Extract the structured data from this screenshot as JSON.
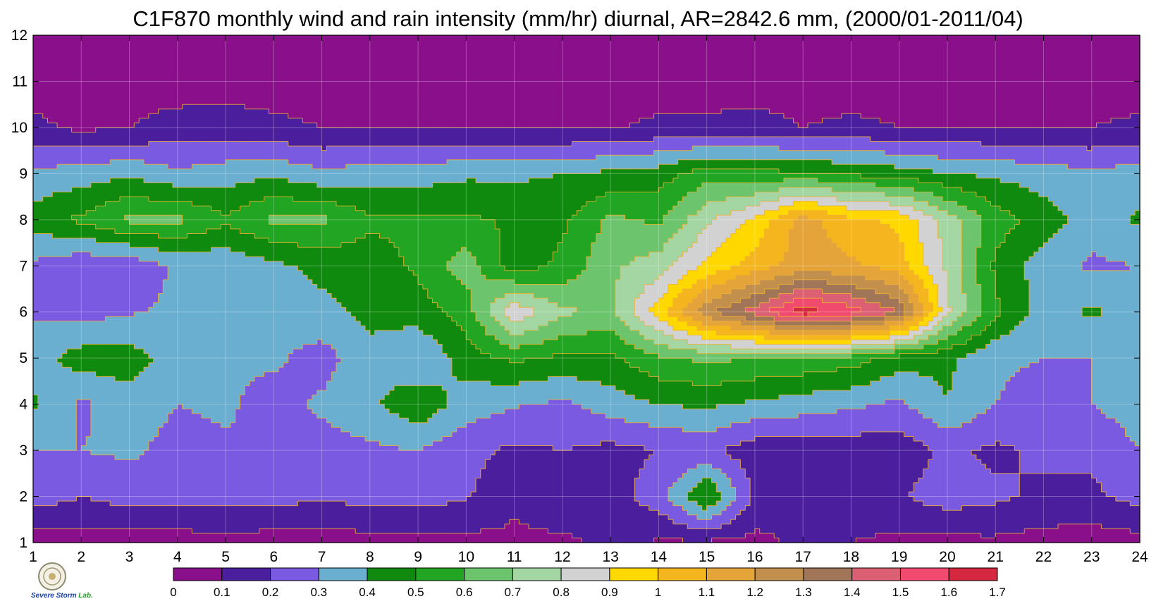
{
  "chart_data": {
    "type": "heatmap",
    "title": "C1F870 monthly wind and rain intensity (mm/hr) diurnal, AR=2842.6 mm, (2000/01-2011/04)",
    "xlabel": "",
    "ylabel": "",
    "xlim": [
      1,
      24
    ],
    "ylim": [
      1,
      12
    ],
    "x_ticks": [
      "1",
      "2",
      "3",
      "4",
      "5",
      "6",
      "7",
      "8",
      "9",
      "10",
      "11",
      "12",
      "13",
      "14",
      "15",
      "16",
      "17",
      "18",
      "19",
      "20",
      "21",
      "22",
      "23",
      "24"
    ],
    "y_ticks": [
      "1",
      "2",
      "3",
      "4",
      "5",
      "6",
      "7",
      "8",
      "9",
      "10",
      "11",
      "12"
    ],
    "grid": true,
    "colorbar": {
      "placement": "bottom",
      "levels": [
        "0",
        "0.1",
        "0.2",
        "0.3",
        "0.4",
        "0.5",
        "0.6",
        "0.7",
        "0.8",
        "0.9",
        "1",
        "1.1",
        "1.2",
        "1.3",
        "1.4",
        "1.5",
        "1.6",
        "1.7"
      ],
      "colors": [
        "#8a0f8a",
        "#4a1e9c",
        "#7a5ae0",
        "#6aaed0",
        "#0f8a0f",
        "#22a522",
        "#6cc46c",
        "#a3d6a3",
        "#d2d2d2",
        "#ffd800",
        "#f5b51f",
        "#e4a43a",
        "#c2904c",
        "#a07558",
        "#dc6074",
        "#f04a6e",
        "#d42840"
      ]
    },
    "contour_line_color": "#f0b030",
    "values": [
      [
        0.05,
        0.06,
        0.05,
        0.05,
        0.06,
        0.05,
        0.05,
        0.06,
        0.07,
        0.07,
        0.08,
        0.08,
        0.12,
        0.09,
        0.08,
        0.07,
        0.12,
        0.1,
        0.08,
        0.07,
        0.08,
        0.06,
        0.05,
        0.06
      ],
      [
        0.25,
        0.2,
        0.24,
        0.24,
        0.24,
        0.24,
        0.21,
        0.24,
        0.24,
        0.21,
        0.12,
        0.18,
        0.16,
        0.25,
        0.52,
        0.18,
        0.14,
        0.12,
        0.19,
        0.25,
        0.22,
        0.18,
        0.18,
        0.24
      ],
      [
        0.3,
        0.3,
        0.32,
        0.26,
        0.28,
        0.3,
        0.25,
        0.28,
        0.3,
        0.23,
        0.18,
        0.2,
        0.17,
        0.2,
        0.22,
        0.14,
        0.14,
        0.14,
        0.14,
        0.22,
        0.18,
        0.22,
        0.22,
        0.3
      ],
      [
        0.42,
        0.28,
        0.36,
        0.3,
        0.32,
        0.25,
        0.32,
        0.38,
        0.48,
        0.35,
        0.31,
        0.28,
        0.35,
        0.4,
        0.42,
        0.38,
        0.35,
        0.32,
        0.28,
        0.4,
        0.3,
        0.25,
        0.3,
        0.35
      ],
      [
        0.35,
        0.45,
        0.45,
        0.35,
        0.32,
        0.32,
        0.25,
        0.38,
        0.3,
        0.45,
        0.52,
        0.48,
        0.48,
        0.58,
        0.62,
        0.6,
        0.58,
        0.55,
        0.45,
        0.42,
        0.32,
        0.3,
        0.3,
        0.32
      ],
      [
        0.29,
        0.26,
        0.29,
        0.32,
        0.32,
        0.35,
        0.38,
        0.42,
        0.45,
        0.55,
        0.88,
        0.72,
        0.68,
        0.95,
        1.28,
        1.45,
        1.66,
        1.55,
        1.4,
        0.82,
        0.52,
        0.35,
        0.42,
        0.35
      ],
      [
        0.28,
        0.22,
        0.22,
        0.32,
        0.32,
        0.38,
        0.42,
        0.45,
        0.52,
        0.65,
        0.45,
        0.52,
        0.68,
        0.75,
        0.92,
        1.05,
        1.15,
        1.12,
        1.05,
        0.78,
        0.48,
        0.35,
        0.28,
        0.3
      ],
      [
        0.45,
        0.52,
        0.62,
        0.62,
        0.52,
        0.62,
        0.62,
        0.52,
        0.52,
        0.52,
        0.48,
        0.48,
        0.62,
        0.58,
        0.78,
        0.92,
        1.15,
        1.02,
        0.98,
        0.75,
        0.55,
        0.45,
        0.35,
        0.42
      ],
      [
        0.32,
        0.35,
        0.38,
        0.32,
        0.35,
        0.38,
        0.32,
        0.35,
        0.35,
        0.38,
        0.38,
        0.4,
        0.42,
        0.45,
        0.55,
        0.52,
        0.52,
        0.48,
        0.45,
        0.4,
        0.38,
        0.35,
        0.32,
        0.35
      ],
      [
        0.12,
        0.08,
        0.1,
        0.14,
        0.15,
        0.12,
        0.1,
        0.1,
        0.1,
        0.09,
        0.09,
        0.09,
        0.09,
        0.12,
        0.12,
        0.14,
        0.1,
        0.12,
        0.1,
        0.1,
        0.1,
        0.1,
        0.1,
        0.12
      ],
      [
        0.06,
        0.07,
        0.06,
        0.05,
        0.05,
        0.06,
        0.05,
        0.05,
        0.05,
        0.05,
        0.05,
        0.05,
        0.05,
        0.05,
        0.05,
        0.05,
        0.05,
        0.05,
        0.05,
        0.05,
        0.05,
        0.05,
        0.05,
        0.05
      ],
      [
        0.05,
        0.05,
        0.05,
        0.05,
        0.05,
        0.05,
        0.1,
        0.05,
        0.05,
        0.05,
        0.05,
        0.05,
        0.05,
        0.05,
        0.05,
        0.05,
        0.05,
        0.05,
        0.05,
        0.05,
        0.05,
        0.05,
        0.05,
        0.05
      ]
    ]
  },
  "logo": {
    "line1": "Severe",
    "line2": "Storm",
    "line3": "Lab."
  }
}
